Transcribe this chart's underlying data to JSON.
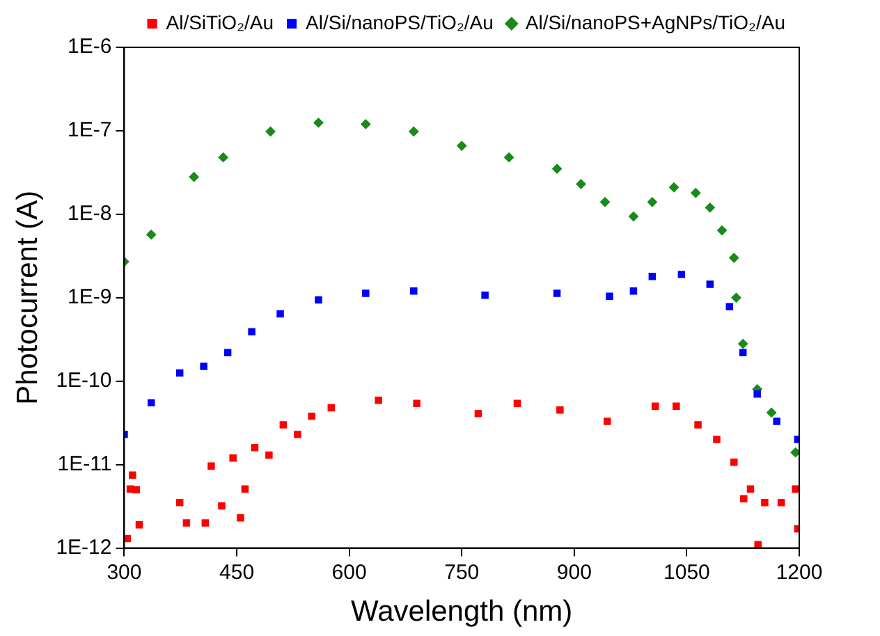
{
  "chart_data": {
    "type": "scatter",
    "xlabel": "Wavelength (nm)",
    "ylabel": "Photocurrent (A)",
    "log": "y",
    "legend": "top right",
    "grid": false,
    "xlim": [
      300,
      1200
    ],
    "xticks": [
      300,
      450,
      600,
      750,
      900,
      1050,
      1200
    ],
    "ylim": [
      1e-12,
      1e-06
    ],
    "yticks": [
      {
        "value": 1e-12,
        "label": "1E-12"
      },
      {
        "value": 1e-11,
        "label": "1E-11"
      },
      {
        "value": 1e-10,
        "label": "1E-10"
      },
      {
        "value": 1e-09,
        "label": "1E-9"
      },
      {
        "value": 1e-08,
        "label": "1E-8"
      },
      {
        "value": 1e-07,
        "label": "1E-7"
      },
      {
        "value": 1e-06,
        "label": "1E-6"
      }
    ],
    "series": [
      {
        "name": "Al/SiTiO₂/Au",
        "color": "#ff0000",
        "marker": "square",
        "x": [
          304,
          308,
          311,
          316,
          320,
          374,
          383,
          408,
          416,
          430,
          445,
          455,
          461,
          474,
          493,
          512,
          531,
          550,
          576,
          639,
          690,
          772,
          824,
          881,
          944,
          1008,
          1036,
          1065,
          1090,
          1113,
          1126,
          1135,
          1145,
          1154,
          1176,
          1195,
          1198
        ],
        "values": [
          1.3e-12,
          5.1e-12,
          7.5e-12,
          5e-12,
          1.9e-12,
          3.5e-12,
          2e-12,
          2e-12,
          9.6e-12,
          3.2e-12,
          1.2e-11,
          2.3e-12,
          5.1e-12,
          1.6e-11,
          1.3e-11,
          3e-11,
          2.3e-11,
          3.8e-11,
          4.8e-11,
          5.9e-11,
          5.4e-11,
          4.1e-11,
          5.4e-11,
          4.5e-11,
          3.3e-11,
          5e-11,
          5e-11,
          3e-11,
          2e-11,
          1.07e-11,
          3.9e-12,
          5.1e-12,
          1.1e-12,
          3.5e-12,
          3.5e-12,
          5.1e-12,
          1.7e-12
        ]
      },
      {
        "name": "Al/Si/nanoPS/TiO₂/Au",
        "color": "#0000ff",
        "marker": "square",
        "x": [
          300,
          336,
          374,
          406,
          438,
          470,
          508,
          559,
          622,
          686,
          781,
          877,
          947,
          979,
          1004,
          1043,
          1081,
          1107,
          1125,
          1144,
          1170,
          1198
        ],
        "values": [
          2.3e-11,
          5.5e-11,
          1.25e-10,
          1.5e-10,
          2.2e-10,
          3.9e-10,
          6.4e-10,
          9.4e-10,
          1.13e-09,
          1.2e-09,
          1.07e-09,
          1.13e-09,
          1.04e-09,
          1.2e-09,
          1.8e-09,
          1.9e-09,
          1.45e-09,
          7.8e-10,
          2.2e-10,
          7e-11,
          3.3e-11,
          2e-11
        ]
      },
      {
        "name": "Al/Si/nanoPS+AgNPs/TiO₂/Au",
        "color": "#1a8a1a",
        "marker": "diamond",
        "x": [
          300,
          336,
          393,
          432,
          495,
          559,
          622,
          686,
          750,
          813,
          877,
          909,
          941,
          979,
          1004,
          1033,
          1062,
          1081,
          1097,
          1113,
          1116,
          1125,
          1144,
          1163,
          1195
        ],
        "values": [
          2.7e-09,
          5.7e-09,
          2.8e-08,
          4.8e-08,
          9.8e-08,
          1.25e-07,
          1.2e-07,
          9.8e-08,
          6.6e-08,
          4.8e-08,
          3.5e-08,
          2.3e-08,
          1.4e-08,
          9.4e-09,
          1.4e-08,
          2.1e-08,
          1.8e-08,
          1.2e-08,
          6.4e-09,
          3e-09,
          1e-09,
          2.8e-10,
          8e-11,
          4.2e-11,
          1.4e-11
        ]
      }
    ]
  }
}
